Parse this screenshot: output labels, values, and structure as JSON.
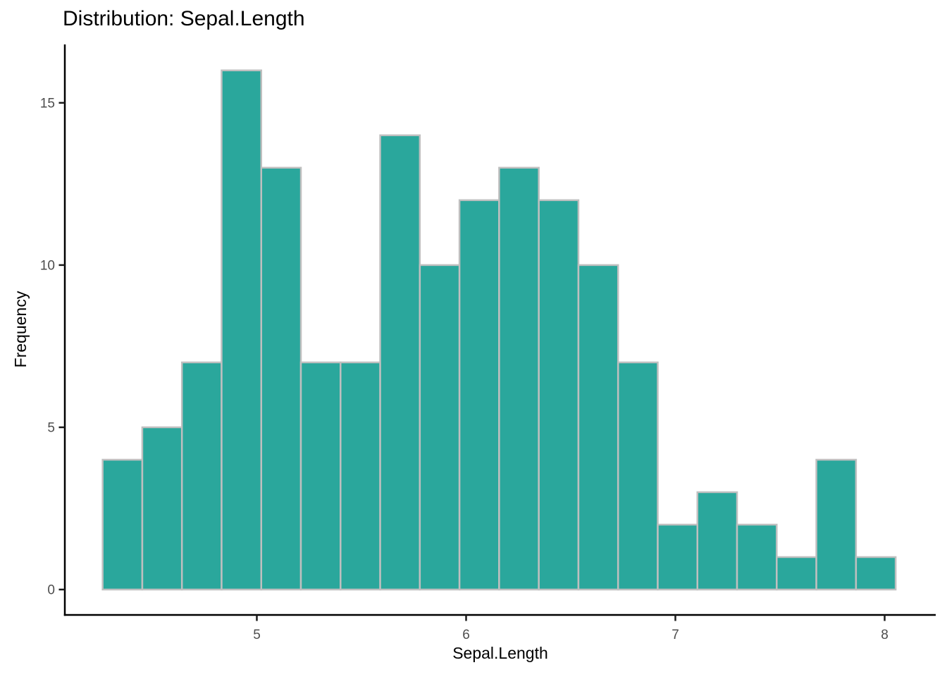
{
  "chart_data": {
    "type": "bar",
    "subtype": "histogram",
    "title": "Distribution: Sepal.Length",
    "xlabel": "Sepal.Length",
    "ylabel": "Frequency",
    "bins": 20,
    "bin_start": 4.2632,
    "bin_width": 0.18947,
    "counts": [
      4,
      5,
      7,
      16,
      13,
      7,
      7,
      14,
      10,
      12,
      13,
      12,
      10,
      7,
      2,
      3,
      2,
      1,
      4,
      1
    ],
    "total_observations": 150,
    "x_ticks": [
      5,
      6,
      7,
      8
    ],
    "y_ticks": [
      0,
      5,
      10,
      15
    ],
    "xlim": [
      4.0825,
      8.2441
    ],
    "ylim": [
      -0.783,
      16.8
    ],
    "grid": false,
    "legend_position": "none",
    "bar_fill": "#2AA79C",
    "bar_border": "#BFBFBF",
    "axis_line_color": "#000000",
    "tick_mark_color": "#1A1A1A",
    "tick_label_color": "#4D4D4D",
    "title_color": "#000000",
    "background": "#FFFFFF"
  }
}
